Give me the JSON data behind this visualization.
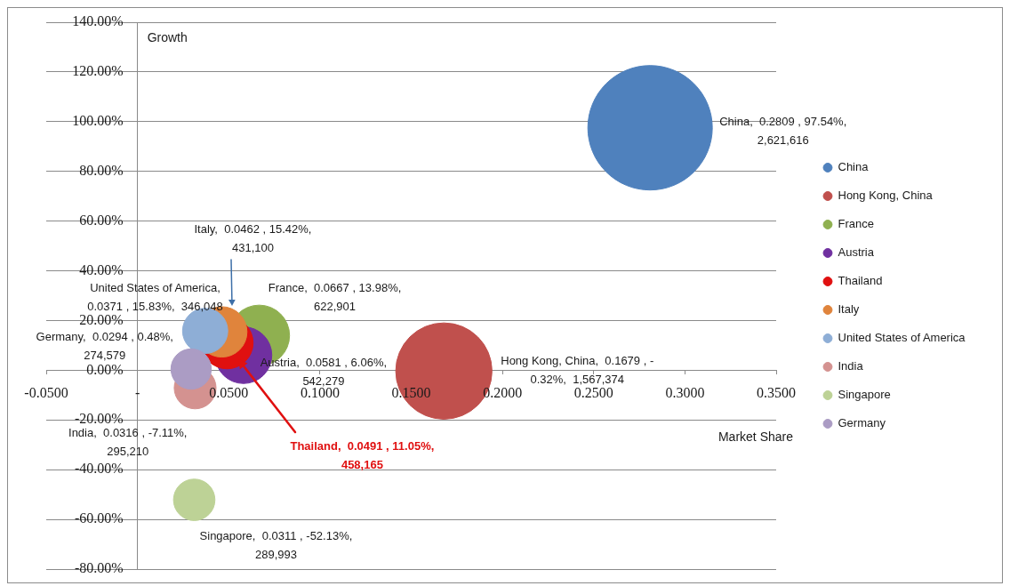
{
  "chart_data": {
    "type": "bubble",
    "xlabel": "Market Share",
    "ylabel": "Growth",
    "xlim": [
      -0.05,
      0.35
    ],
    "xticks": [
      {
        "value": -0.05,
        "label": "-0.0500"
      },
      {
        "value": 0,
        "label": "-"
      },
      {
        "value": 0.05,
        "label": "0.0500"
      },
      {
        "value": 0.1,
        "label": "0.1000"
      },
      {
        "value": 0.15,
        "label": "0.1500"
      },
      {
        "value": 0.2,
        "label": "0.2000"
      },
      {
        "value": 0.25,
        "label": "0.2500"
      },
      {
        "value": 0.3,
        "label": "0.3000"
      },
      {
        "value": 0.35,
        "label": "0.3500"
      }
    ],
    "ylim": [
      -80,
      140
    ],
    "yticks": [
      {
        "value": -80,
        "label": "-80.00%"
      },
      {
        "value": -60,
        "label": "-60.00%"
      },
      {
        "value": -40,
        "label": "-40.00%"
      },
      {
        "value": -20,
        "label": "-20.00%"
      },
      {
        "value": 0,
        "label": "0.00%"
      },
      {
        "value": 20,
        "label": "20.00%"
      },
      {
        "value": 40,
        "label": "40.00%"
      },
      {
        "value": 60,
        "label": "60.00%"
      },
      {
        "value": 80,
        "label": "80.00%"
      },
      {
        "value": 100,
        "label": "100.00%"
      },
      {
        "value": 120,
        "label": "120.00%"
      },
      {
        "value": 140,
        "label": "140.00%"
      }
    ],
    "grid": "y",
    "legend": "right",
    "series": [
      {
        "name": "China",
        "color": "#4f81bd",
        "x": [
          0.2809
        ],
        "values": [
          97.54
        ],
        "sizes": [
          1
        ],
        "value_labels": [
          "China,  0.2809 , 97.54%,\n2,621,616"
        ]
      },
      {
        "name": "Hong Kong, China",
        "color": "#c0504d",
        "x": [
          0.1679
        ],
        "values": [
          -0.32
        ],
        "sizes": [
          0.598
        ],
        "value_labels": [
          "Hong Kong, China,  0.1679 , -\n0.32%,  1,567,374"
        ]
      },
      {
        "name": "France",
        "color": "#8fb050",
        "x": [
          0.0667
        ],
        "values": [
          13.98
        ],
        "sizes": [
          0.238
        ],
        "value_labels": [
          "France,  0.0667 , 13.98%,\n622,901"
        ]
      },
      {
        "name": "Austria",
        "color": "#7030a0",
        "x": [
          0.0581
        ],
        "values": [
          6.06
        ],
        "sizes": [
          0.207
        ],
        "value_labels": [
          "Austria,  0.0581 , 6.06%,\n542,279"
        ]
      },
      {
        "name": "Thailand",
        "color": "#e01010",
        "x": [
          0.0491
        ],
        "values": [
          11.05
        ],
        "sizes": [
          0.175
        ],
        "value_labels": [
          "Thailand,  0.0491 , 11.05%,\n458,165"
        ]
      },
      {
        "name": "Italy",
        "color": "#e0843c",
        "x": [
          0.0462
        ],
        "values": [
          15.42
        ],
        "sizes": [
          0.164
        ],
        "value_labels": [
          "Italy,  0.0462 , 15.42%,\n431,100"
        ]
      },
      {
        "name": "United States of America",
        "color": "#8eaed6",
        "x": [
          0.0371
        ],
        "values": [
          15.83
        ],
        "sizes": [
          0.132
        ],
        "value_labels": [
          "United States of America,\n0.0371 , 15.83%,  346,048"
        ]
      },
      {
        "name": "India",
        "color": "#d49290",
        "x": [
          0.0316
        ],
        "values": [
          -7.11
        ],
        "sizes": [
          0.113
        ],
        "value_labels": [
          "India,  0.0316 , -7.11%,\n295,210"
        ]
      },
      {
        "name": "Singapore",
        "color": "#bdd296",
        "x": [
          0.0311
        ],
        "values": [
          -52.13
        ],
        "sizes": [
          0.111
        ],
        "value_labels": [
          "Singapore,  0.0311 , -52.13%,\n289,993"
        ]
      },
      {
        "name": "Germany",
        "color": "#ab9cc4",
        "x": [
          0.0294
        ],
        "values": [
          0.48
        ],
        "sizes": [
          0.105
        ],
        "value_labels": [
          "Germany,  0.0294 , 0.48%,\n274,579"
        ]
      }
    ]
  }
}
